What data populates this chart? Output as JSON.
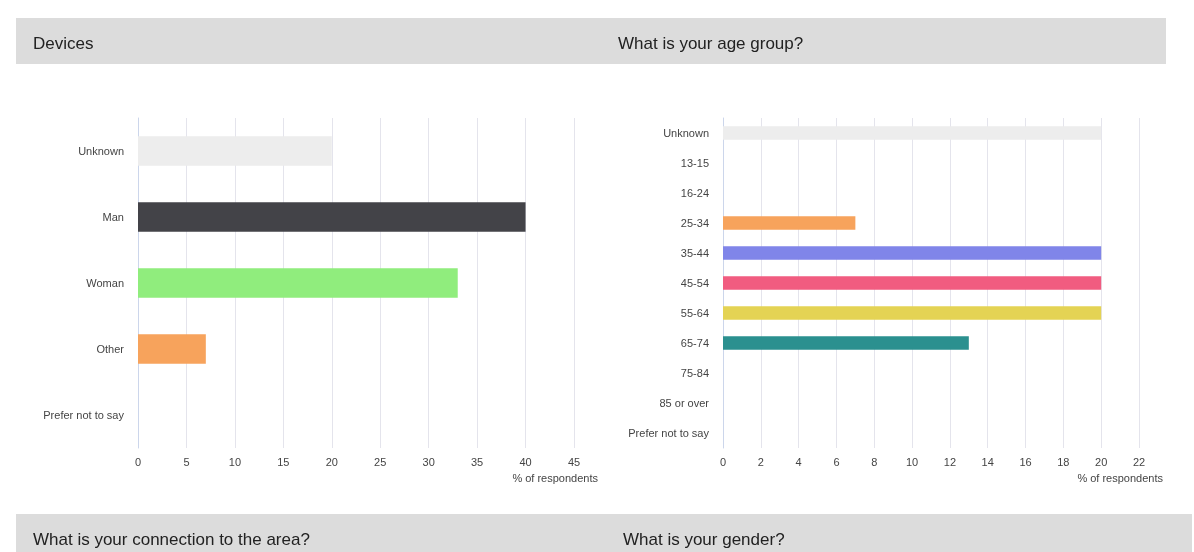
{
  "chart_data": [
    {
      "type": "bar",
      "title": "Devices",
      "orientation": "horizontal",
      "categories": [
        "Unknown",
        "Man",
        "Woman",
        "Other",
        "Prefer not to say"
      ],
      "values": [
        20,
        40,
        33,
        7,
        0
      ],
      "colors": [
        "#ededed",
        "#434348",
        "#90ed7d",
        "#f7a35c",
        "#8085e9"
      ],
      "xlim": [
        0,
        45
      ],
      "xticks": [
        0,
        5,
        10,
        15,
        20,
        25,
        30,
        35,
        40,
        45
      ],
      "xlabel": "% of respondents",
      "grid": "x"
    },
    {
      "type": "bar",
      "title": "What is your age group?",
      "orientation": "horizontal",
      "categories": [
        "Unknown",
        "13-15",
        "16-24",
        "25-34",
        "35-44",
        "45-54",
        "55-64",
        "65-74",
        "75-84",
        "85 or over",
        "Prefer not to say"
      ],
      "values": [
        20,
        0,
        0,
        7,
        20,
        20,
        20,
        13,
        0,
        0,
        0
      ],
      "colors": [
        "#ededed",
        "#434348",
        "#90ed7d",
        "#f7a35c",
        "#8085e9",
        "#f15c80",
        "#e4d354",
        "#2b908f",
        "#f45b5b",
        "#91e8e1",
        "#7cb5ec"
      ],
      "xlim": [
        0,
        22
      ],
      "xticks": [
        0,
        2,
        4,
        6,
        8,
        10,
        12,
        14,
        16,
        18,
        20,
        22
      ],
      "xlabel": "% of respondents",
      "grid": "x"
    },
    {
      "type": "other",
      "title": "What is your connection to the area?"
    },
    {
      "type": "other",
      "title": "What is your gender?"
    }
  ]
}
